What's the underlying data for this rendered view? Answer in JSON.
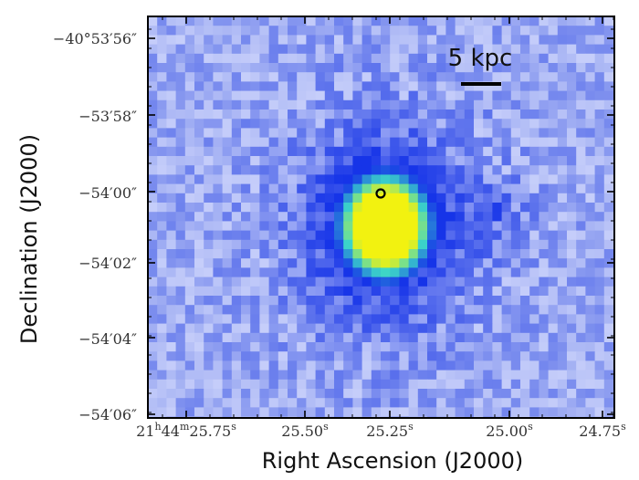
{
  "figure": {
    "xlabel": "Right Ascension (J2000)",
    "ylabel": "Declination (J2000)",
    "x_ticks": [
      {
        "main": "21",
        "u1": "h",
        "p2": "44",
        "u2": "m",
        "p3": "25.75",
        "u3": "s"
      },
      {
        "main": "25.50",
        "u1": "s"
      },
      {
        "main": "25.25",
        "u1": "s"
      },
      {
        "main": "25.00",
        "u1": "s"
      },
      {
        "main": "24.75",
        "u1": "s"
      }
    ],
    "y_ticks": [
      "−40°53′56″",
      "−53′58″",
      "−54′00″",
      "−54′02″",
      "−54′04″",
      "−54′06″"
    ],
    "scalebar_label": "5 kpc",
    "colors": {
      "background_pixel": "#8fa0ef",
      "halo": "#1433e6",
      "core": "#f2f20d",
      "mid": "#44dcc6",
      "marker": "#000000",
      "frame": "#000000"
    }
  }
}
